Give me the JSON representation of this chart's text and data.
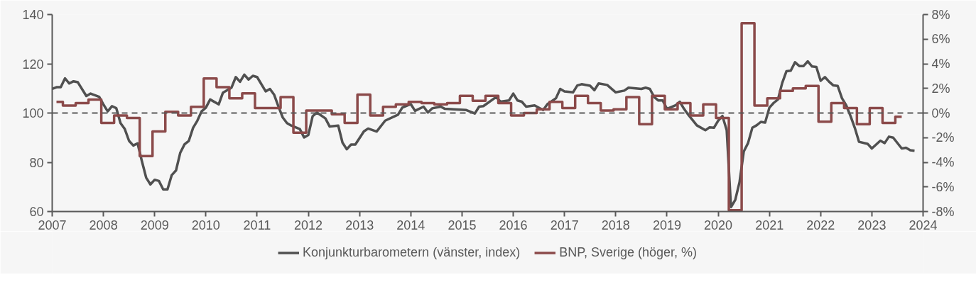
{
  "chart_data": {
    "type": "step",
    "xlim": [
      "2007",
      "2024"
    ],
    "xticks": [
      "2007",
      "2008",
      "2009",
      "2010",
      "2011",
      "2012",
      "2013",
      "2014",
      "2015",
      "2016",
      "2017",
      "2018",
      "2019",
      "2020",
      "2021",
      "2022",
      "2023",
      "2024"
    ],
    "ylim": [
      60,
      140
    ],
    "yticks": [
      60,
      80,
      100,
      120,
      140
    ],
    "y2lim": [
      -8,
      8
    ],
    "y2ticks": [
      {
        "value": -8,
        "label": "-8%"
      },
      {
        "value": -6,
        "label": "-6%"
      },
      {
        "value": -4,
        "label": "-4%"
      },
      {
        "value": -2,
        "label": "-2%"
      },
      {
        "value": 0,
        "label": "0%"
      },
      {
        "value": 2,
        "label": "2%"
      },
      {
        "value": 4,
        "label": "4%"
      },
      {
        "value": 6,
        "label": "6%"
      },
      {
        "value": 8,
        "label": "8%"
      }
    ],
    "grid": false,
    "legend": "bottom",
    "marker": "none",
    "line_style": "solid",
    "ref_lines": [
      {
        "axis": "y",
        "value": 100,
        "color": "#595959",
        "line_style": "dashed"
      }
    ],
    "series": [
      {
        "name": "Konjunkturbarometern (vänster, index)",
        "color": "#505050",
        "type": "line",
        "x": [
          "2007-01",
          "2007-02",
          "2007-03",
          "2007-04",
          "2007-05",
          "2007-06",
          "2007-07",
          "2007-09",
          "2007-10",
          "2007-12",
          "2008-01",
          "2008-02",
          "2008-03",
          "2008-04",
          "2008-05",
          "2008-06",
          "2008-07",
          "2008-08",
          "2008-09",
          "2008-10",
          "2008-11",
          "2008-12",
          "2009-01",
          "2009-02",
          "2009-03",
          "2009-04",
          "2009-05",
          "2009-06",
          "2009-07",
          "2009-08",
          "2009-09",
          "2009-10",
          "2009-11",
          "2009-12",
          "2010-01",
          "2010-02",
          "2010-04",
          "2010-05",
          "2010-06",
          "2010-07",
          "2010-08",
          "2010-09",
          "2010-10",
          "2010-11",
          "2010-12",
          "2011-01",
          "2011-03",
          "2011-04",
          "2011-05",
          "2011-06",
          "2011-07",
          "2011-08",
          "2011-09",
          "2011-11",
          "2011-12",
          "2012-01",
          "2012-02",
          "2012-03",
          "2012-05",
          "2012-06",
          "2012-08",
          "2012-09",
          "2012-10",
          "2012-11",
          "2012-12",
          "2013-02",
          "2013-03",
          "2013-05",
          "2013-07",
          "2013-10",
          "2013-11",
          "2014-01",
          "2014-02",
          "2014-04",
          "2014-05",
          "2014-06",
          "2014-08",
          "2014-09",
          "2014-11",
          "2015-02",
          "2015-04",
          "2015-05",
          "2015-06",
          "2015-09",
          "2015-10",
          "2015-12",
          "2016-01",
          "2016-02",
          "2016-03",
          "2016-04",
          "2016-06",
          "2016-08",
          "2016-09",
          "2016-11",
          "2016-12",
          "2017-01",
          "2017-03",
          "2017-04",
          "2017-05",
          "2017-07",
          "2017-08",
          "2017-09",
          "2017-11",
          "2018-01",
          "2018-03",
          "2018-04",
          "2018-07",
          "2018-08",
          "2018-09",
          "2018-10",
          "2018-11",
          "2018-12",
          "2019-01",
          "2019-03",
          "2019-04",
          "2019-05",
          "2019-06",
          "2019-08",
          "2019-10",
          "2019-11",
          "2019-12",
          "2020-01",
          "2020-02",
          "2020-03",
          "2020-04",
          "2020-05",
          "2020-06",
          "2020-07",
          "2020-08",
          "2020-09",
          "2020-10",
          "2020-11",
          "2020-12",
          "2021-01",
          "2021-02",
          "2021-03",
          "2021-04",
          "2021-05",
          "2021-06",
          "2021-07",
          "2021-08",
          "2021-09",
          "2021-10",
          "2021-11",
          "2021-12",
          "2022-01",
          "2022-02",
          "2022-03",
          "2022-04",
          "2022-05",
          "2022-06",
          "2022-07",
          "2022-08",
          "2022-09",
          "2022-10",
          "2022-12",
          "2023-01",
          "2023-03",
          "2023-04",
          "2023-05",
          "2023-06",
          "2023-08",
          "2023-09",
          "2023-10",
          "2023-11"
        ],
        "values": [
          109.8,
          110.5,
          110.5,
          114.1,
          112.0,
          112.9,
          112.5,
          106.9,
          107.9,
          106.6,
          103.5,
          100.7,
          102.8,
          102.0,
          95.9,
          93.5,
          88.7,
          86.8,
          87.7,
          80.5,
          73.8,
          71.0,
          72.9,
          72.4,
          69.0,
          69.0,
          74.8,
          76.7,
          83.9,
          87.3,
          88.7,
          94.0,
          96.9,
          100.7,
          102.2,
          105.5,
          103.5,
          108.3,
          109.3,
          110.3,
          114.6,
          112.7,
          115.6,
          113.6,
          115.1,
          114.6,
          108.8,
          109.8,
          107.4,
          102.6,
          98.2,
          95.9,
          94.9,
          93.5,
          90.1,
          91.1,
          98.7,
          100.2,
          97.8,
          94.5,
          94.9,
          88.0,
          85.3,
          87.2,
          87.2,
          92.5,
          93.7,
          92.5,
          96.9,
          99.3,
          102.2,
          103.6,
          100.9,
          102.6,
          100.2,
          101.9,
          102.6,
          101.7,
          101.5,
          101.2,
          99.8,
          102.6,
          102.8,
          106.5,
          104.6,
          105.1,
          107.9,
          105.1,
          104.6,
          102.6,
          103.1,
          101.2,
          103.6,
          106.0,
          109.8,
          108.8,
          108.4,
          111.2,
          111.7,
          111.1,
          109.3,
          112.0,
          111.4,
          108.4,
          109.1,
          110.3,
          109.8,
          110.3,
          109.8,
          106.5,
          105.1,
          105.1,
          101.7,
          103.1,
          104.6,
          101.7,
          99.3,
          95.0,
          93.0,
          94.2,
          94.0,
          96.9,
          98.8,
          93.0,
          61.8,
          64.7,
          71.9,
          84.4,
          87.8,
          94.0,
          95.0,
          96.4,
          96.1,
          102.2,
          104.1,
          105.5,
          112.2,
          117.0,
          117.2,
          120.6,
          119.1,
          119.1,
          121.0,
          118.9,
          118.7,
          113.1,
          114.6,
          112.7,
          111.2,
          111.0,
          106.0,
          103.1,
          98.8,
          94.0,
          88.3,
          87.5,
          85.6,
          88.8,
          87.8,
          90.4,
          90.0,
          85.6,
          85.9,
          84.9,
          84.7
        ]
      },
      {
        "name": "BNP, Sverige (höger, %)",
        "color": "#8b4a4a",
        "axis": "y2",
        "x": [
          "2007-02",
          "2007-05",
          "2007-08",
          "2007-11",
          "2008-02",
          "2008-05",
          "2008-08",
          "2008-11",
          "2009-02",
          "2009-05",
          "2009-08",
          "2009-11",
          "2010-02",
          "2010-05",
          "2010-08",
          "2010-11",
          "2011-02",
          "2011-05",
          "2011-08",
          "2011-11",
          "2012-02",
          "2012-05",
          "2012-08",
          "2012-11",
          "2013-02",
          "2013-05",
          "2013-08",
          "2013-11",
          "2014-02",
          "2014-05",
          "2014-08",
          "2014-11",
          "2015-02",
          "2015-05",
          "2015-08",
          "2015-11",
          "2016-02",
          "2016-05",
          "2016-08",
          "2016-11",
          "2017-02",
          "2017-05",
          "2017-08",
          "2017-11",
          "2018-02",
          "2018-05",
          "2018-08",
          "2018-11",
          "2019-02",
          "2019-05",
          "2019-08",
          "2019-11",
          "2020-02",
          "2020-05",
          "2020-08",
          "2020-11",
          "2021-02",
          "2021-05",
          "2021-08",
          "2021-11",
          "2022-02",
          "2022-05",
          "2022-08",
          "2022-11",
          "2023-02",
          "2023-05",
          "2023-08"
        ],
        "values": [
          0.9,
          0.6,
          0.8,
          1.1,
          -0.8,
          -0.2,
          -0.4,
          -3.5,
          -1.5,
          0.1,
          -0.2,
          0.5,
          2.8,
          2.1,
          1.2,
          1.6,
          0.4,
          0.4,
          1.3,
          -1.6,
          0.2,
          0.2,
          -0.1,
          -0.8,
          1.5,
          -0.2,
          0.5,
          0.7,
          0.9,
          0.8,
          0.7,
          0.8,
          1.4,
          1.0,
          1.4,
          0.8,
          -0.2,
          0.0,
          0.3,
          0.9,
          0.4,
          1.4,
          0.8,
          0.2,
          0.3,
          1.3,
          -0.9,
          1.4,
          0.3,
          0.8,
          -0.2,
          0.7,
          -0.4,
          -7.9,
          7.3,
          0.6,
          1.2,
          1.8,
          2.0,
          2.2,
          -0.7,
          0.8,
          0.4,
          -0.9,
          0.4,
          -0.8,
          -0.3
        ]
      }
    ]
  }
}
